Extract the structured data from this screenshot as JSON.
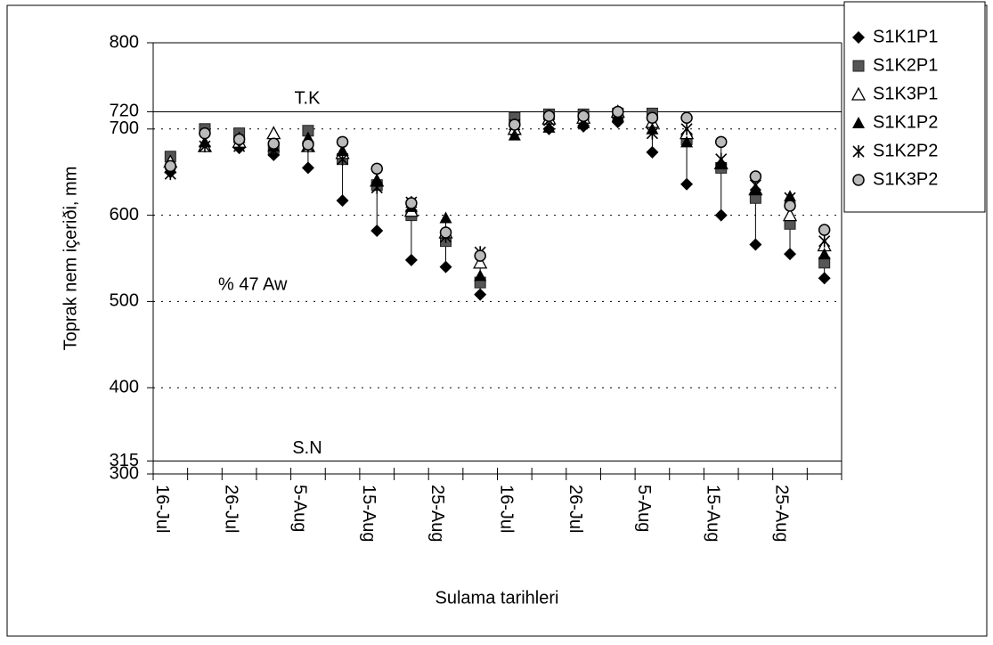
{
  "chart_data": {
    "type": "scatter",
    "y_label": "Toprak nem içeriði, mm",
    "x_label": "Sulama tarihleri",
    "categories": [
      "16-Jul",
      null,
      "26-Jul",
      null,
      "5-Aug",
      null,
      "15-Aug",
      null,
      "25-Aug",
      null,
      "16-Jul",
      null,
      "26-Jul",
      null,
      "5-Aug",
      null,
      "15-Aug",
      null,
      "25-Aug",
      null
    ],
    "series": [
      {
        "name": "S1K1P1",
        "marker": "diamond",
        "color": "#000000",
        "values": [
          650,
          680,
          678,
          670,
          655,
          617,
          582,
          548,
          540,
          508,
          695,
          700,
          703,
          708,
          673,
          636,
          600,
          566,
          555,
          527
        ]
      },
      {
        "name": "S1K2P1",
        "marker": "square",
        "color": "#555555",
        "values": [
          668,
          700,
          695,
          678,
          698,
          665,
          635,
          600,
          570,
          522,
          713,
          717,
          717,
          718,
          718,
          688,
          655,
          620,
          590,
          545
        ]
      },
      {
        "name": "S1K3P1",
        "marker": "triangle-open",
        "color": "#000000",
        "values": [
          662,
          680,
          685,
          695,
          680,
          672,
          640,
          605,
          580,
          545,
          700,
          712,
          713,
          720,
          708,
          695,
          660,
          630,
          600,
          565
        ]
      },
      {
        "name": "S1K1P2",
        "marker": "triangle",
        "color": "#000000",
        "values": [
          655,
          685,
          690,
          680,
          690,
          675,
          640,
          610,
          597,
          530,
          693,
          702,
          707,
          715,
          700,
          685,
          660,
          630,
          622,
          555
        ]
      },
      {
        "name": "S1K2P2",
        "marker": "star",
        "color": "#000000",
        "values": [
          648,
          680,
          680,
          675,
          680,
          665,
          632,
          615,
          575,
          557,
          705,
          710,
          710,
          715,
          695,
          700,
          665,
          635,
          620,
          570
        ]
      },
      {
        "name": "S1K3P2",
        "marker": "circle-open",
        "color": "#000000",
        "values": [
          657,
          695,
          688,
          683,
          682,
          685,
          654,
          614,
          580,
          553,
          705,
          715,
          715,
          720,
          713,
          713,
          685,
          645,
          611,
          583
        ]
      }
    ],
    "reference_lines": [
      {
        "label": "T.K",
        "value": 720
      },
      {
        "label": "S.N",
        "value": 315
      }
    ],
    "annotation": "% 47 Aw",
    "ylim": [
      300,
      800
    ],
    "yticks": [
      300,
      315,
      400,
      500,
      600,
      700,
      720,
      800
    ],
    "grid": true,
    "legend": "top-right"
  }
}
